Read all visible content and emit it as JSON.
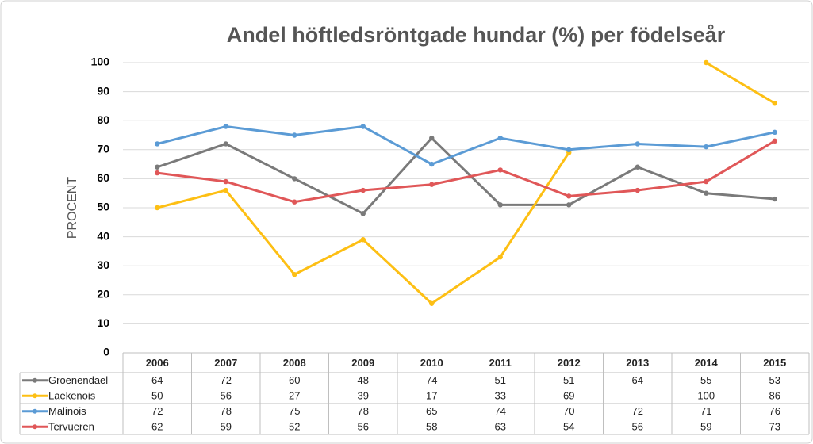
{
  "chart_data": {
    "type": "line",
    "title": "Andel höftledsröntgade hundar (%) per födelseår",
    "y_label": "PROCENT",
    "categories": [
      "2006",
      "2007",
      "2008",
      "2009",
      "2010",
      "2011",
      "2012",
      "2013",
      "2014",
      "2015"
    ],
    "series": [
      {
        "name": "Groenendael",
        "color": "#7a7a7a",
        "values": [
          64,
          72,
          60,
          48,
          74,
          51,
          51,
          64,
          55,
          53
        ]
      },
      {
        "name": "Laekenois",
        "color": "#fdbf14",
        "values": [
          50,
          56,
          27,
          39,
          17,
          33,
          69,
          null,
          100,
          86
        ]
      },
      {
        "name": "Malinois",
        "color": "#5b9bd5",
        "values": [
          72,
          78,
          75,
          78,
          65,
          74,
          70,
          72,
          71,
          76
        ]
      },
      {
        "name": "Tervueren",
        "color": "#e05758",
        "values": [
          62,
          59,
          52,
          56,
          58,
          63,
          54,
          56,
          59,
          73
        ]
      }
    ],
    "ylim": [
      0,
      100
    ],
    "yticks": [
      0,
      10,
      20,
      30,
      40,
      50,
      60,
      70,
      80,
      90,
      100
    ],
    "grid": true
  }
}
